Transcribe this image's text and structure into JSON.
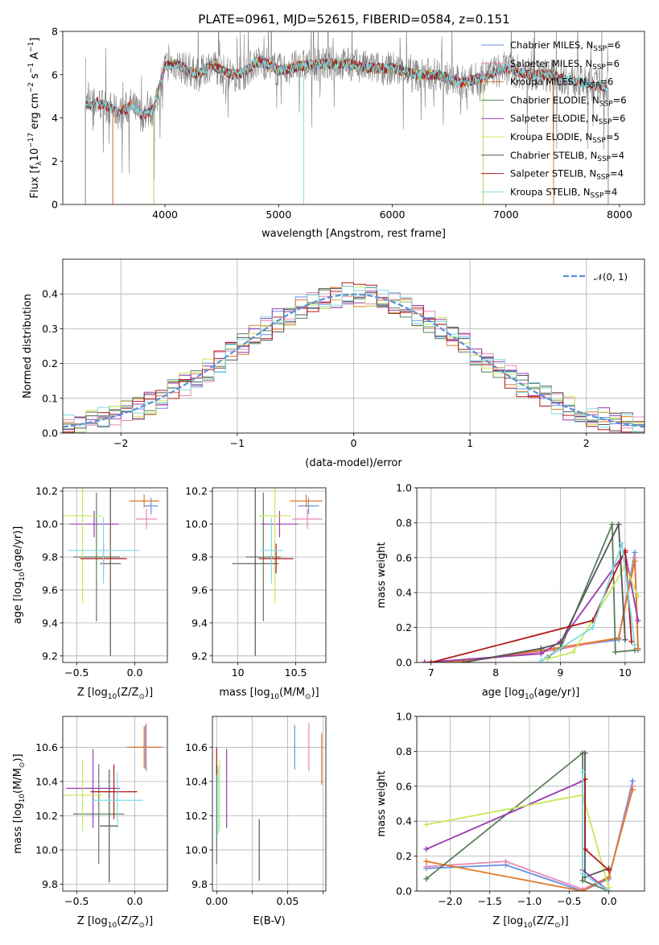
{
  "header": {
    "title": "PLATE=0961, MJD=52615, FIBERID=0584, z=0.151"
  },
  "colors": {
    "c_miles": "#6a8fe0",
    "s_miles": "#e889b3",
    "k_miles": "#e07a28",
    "c_elodie": "#5a7f5a",
    "s_elodie": "#9a3ab0",
    "k_elodie": "#c8e85a",
    "c_stelib": "#555555",
    "s_stelib": "#b01818",
    "k_stelib": "#80dbe0",
    "gauss": "#5b8fd6",
    "data": "#808080"
  },
  "chart_data": [
    {
      "type": "line",
      "id": "spectrum",
      "title": "PLATE=0961, MJD=52615, FIBERID=0584, z=0.151",
      "xlabel": "wavelength [Angstrom, rest frame]",
      "ylabel_parts": [
        "Flux [f",
        "λ",
        "10",
        "−17",
        " erg cm",
        "−2",
        " s",
        "−1",
        " A",
        "−1",
        "]"
      ],
      "xlim": [
        3100,
        8220
      ],
      "ylim": [
        0,
        8
      ],
      "xticks": [
        4000,
        5000,
        6000,
        7000,
        8000
      ],
      "yticks": [
        0,
        2,
        4,
        6,
        8
      ],
      "legend_position": "right",
      "legend": [
        {
          "name": "Chabrier MILES",
          "nssp": "6",
          "color_key": "c_miles"
        },
        {
          "name": "Salpeter MILES",
          "nssp": "6",
          "color_key": "s_miles"
        },
        {
          "name": "Kroupa MILES",
          "nssp": "6",
          "color_key": "k_miles"
        },
        {
          "name": "Chabrier ELODIE",
          "nssp": "6",
          "color_key": "c_elodie"
        },
        {
          "name": "Salpeter ELODIE",
          "nssp": "6",
          "color_key": "s_elodie"
        },
        {
          "name": "Kroupa ELODIE",
          "nssp": "5",
          "color_key": "k_elodie"
        },
        {
          "name": "Chabrier STELIB",
          "nssp": "4",
          "color_key": "c_stelib"
        },
        {
          "name": "Salpeter STELIB",
          "nssp": "4",
          "color_key": "s_stelib"
        },
        {
          "name": "Kroupa STELIB",
          "nssp": "4",
          "color_key": "k_stelib"
        }
      ],
      "legend_sub": "SSP",
      "legend_prefix": "N",
      "continuum": {
        "x": [
          3300,
          3400,
          3500,
          3600,
          3700,
          3800,
          3900,
          4000,
          4100,
          4200,
          4300,
          4400,
          4500,
          4600,
          4700,
          4800,
          4900,
          5000,
          5200,
          5400,
          5600,
          5800,
          6000,
          6200,
          6400,
          6600,
          6800,
          7000,
          7200,
          7400,
          7600,
          7800,
          7900
        ],
        "y": [
          4.6,
          4.7,
          4.5,
          4.2,
          4.6,
          4.1,
          4.4,
          6.4,
          6.5,
          6.2,
          6.0,
          6.5,
          6.2,
          6.0,
          6.1,
          6.6,
          6.5,
          6.2,
          6.4,
          6.5,
          6.5,
          6.3,
          6.3,
          6.0,
          6.0,
          5.6,
          5.9,
          6.3,
          6.0,
          6.0,
          5.7,
          5.5,
          5.4
        ]
      }
    },
    {
      "type": "line",
      "id": "residuals",
      "xlabel": "(data-model)/error",
      "ylabel": "Normed distribution",
      "xlim": [
        -2.5,
        2.5
      ],
      "ylim": [
        0,
        0.5
      ],
      "xticks": [
        -2,
        -1,
        0,
        1,
        2
      ],
      "yticks": [
        0.0,
        0.1,
        0.2,
        0.3,
        0.4
      ],
      "grid": true,
      "legend_position": "top-right",
      "gauss_label": "𝒩(0, 1)",
      "bins": 50
    },
    {
      "type": "scatter",
      "id": "age_vs_Z",
      "xlabel_parts": [
        "Z [log",
        "10",
        "(Z/Z",
        "⊙",
        ")]"
      ],
      "ylabel_parts": [
        "age  [log",
        "10",
        "(age/yr)]"
      ],
      "xlim": [
        -0.62,
        0.28
      ],
      "ylim": [
        9.16,
        10.22
      ],
      "xticks": [
        -0.5,
        0.0
      ],
      "xticklabels": [
        "−0.5",
        "0.0"
      ],
      "yticks": [
        9.2,
        9.4,
        9.6,
        9.8,
        10.0,
        10.2
      ],
      "grid": true,
      "points": [
        {
          "c": "c_miles",
          "x": 0.14,
          "y": 10.11,
          "xe": 0.06,
          "ye": 0.05
        },
        {
          "c": "s_miles",
          "x": 0.1,
          "y": 10.03,
          "xe": 0.09,
          "ye": 0.06
        },
        {
          "c": "k_miles",
          "x": 0.08,
          "y": 10.14,
          "xe": 0.13,
          "ye": 0.04
        },
        {
          "c": "c_elodie",
          "x": -0.33,
          "y": 9.8,
          "xe": 0.2,
          "ye": 0.39
        },
        {
          "c": "s_elodie",
          "x": -0.35,
          "y": 10.0,
          "xe": 0.21,
          "ye": 0.08
        },
        {
          "c": "k_elodie",
          "x": -0.45,
          "y": 10.05,
          "xe": 0.18,
          "ye": 0.53
        },
        {
          "c": "c_stelib",
          "x": -0.21,
          "y": 9.76,
          "xe": 0.09,
          "ye": 0.56
        },
        {
          "c": "s_stelib",
          "x": -0.27,
          "y": 9.79,
          "xe": 0.2,
          "ye": 0.09
        },
        {
          "c": "k_stelib",
          "x": -0.27,
          "y": 9.84,
          "xe": 0.31,
          "ye": 0.2
        }
      ]
    },
    {
      "type": "scatter",
      "id": "age_vs_mass",
      "xlabel_parts": [
        "mass [log",
        "10",
        "(M/M",
        "⊙",
        ")]"
      ],
      "xlim": [
        9.78,
        10.76
      ],
      "ylim": [
        9.16,
        10.22
      ],
      "xticks": [
        10.0,
        10.5
      ],
      "yticks": [
        9.2,
        9.4,
        9.6,
        9.8,
        10.0,
        10.2
      ],
      "grid": true,
      "points": [
        {
          "c": "c_miles",
          "x": 10.61,
          "y": 10.11,
          "xe": 0.09,
          "ye": 0.05
        },
        {
          "c": "s_miles",
          "x": 10.6,
          "y": 10.03,
          "xe": 0.13,
          "ye": 0.06
        },
        {
          "c": "k_miles",
          "x": 10.59,
          "y": 10.14,
          "xe": 0.14,
          "ye": 0.04
        },
        {
          "c": "c_elodie",
          "x": 10.22,
          "y": 9.8,
          "xe": 0.15,
          "ye": 0.39
        },
        {
          "c": "s_elodie",
          "x": 10.36,
          "y": 10.0,
          "xe": 0.16,
          "ye": 0.08
        },
        {
          "c": "k_elodie",
          "x": 10.32,
          "y": 10.05,
          "xe": 0.14,
          "ye": 0.53
        },
        {
          "c": "c_stelib",
          "x": 10.15,
          "y": 9.76,
          "xe": 0.2,
          "ye": 0.56
        },
        {
          "c": "s_stelib",
          "x": 10.33,
          "y": 9.79,
          "xe": 0.15,
          "ye": 0.09
        },
        {
          "c": "k_stelib",
          "x": 10.29,
          "y": 9.84,
          "xe": 0.1,
          "ye": 0.2
        }
      ]
    },
    {
      "type": "line",
      "id": "weight_vs_age",
      "xlabel_parts": [
        "age  [log",
        "10",
        "(age/yr)]"
      ],
      "ylabel": "mass weight",
      "xlim": [
        6.78,
        10.3
      ],
      "ylim": [
        0,
        1
      ],
      "xticks": [
        7,
        8,
        9,
        10
      ],
      "yticks": [
        0.0,
        0.2,
        0.4,
        0.6,
        0.8,
        1.0
      ],
      "grid": true,
      "series": [
        {
          "c": "c_miles",
          "x": [
            6.9,
            7.6,
            8.9,
            9.9,
            10.15,
            10.2
          ],
          "y": [
            0.0,
            0.01,
            0.08,
            0.13,
            0.63,
            0.07
          ]
        },
        {
          "c": "s_miles",
          "x": [
            6.9,
            7.6,
            8.9,
            9.9,
            10.15,
            10.2
          ],
          "y": [
            0.0,
            0.01,
            0.07,
            0.14,
            0.6,
            0.08
          ]
        },
        {
          "c": "k_miles",
          "x": [
            6.9,
            7.6,
            8.9,
            9.9,
            10.15,
            10.2
          ],
          "y": [
            0.0,
            0.01,
            0.08,
            0.14,
            0.58,
            0.08
          ]
        },
        {
          "c": "c_elodie",
          "x": [
            8.8,
            9.0,
            9.8,
            9.85,
            10.15
          ],
          "y": [
            0.03,
            0.08,
            0.79,
            0.06,
            0.07
          ]
        },
        {
          "c": "s_elodie",
          "x": [
            6.9,
            8.7,
            9.0,
            10.0,
            10.2
          ],
          "y": [
            0.0,
            0.05,
            0.12,
            0.63,
            0.24
          ]
        },
        {
          "c": "k_elodie",
          "x": [
            8.8,
            9.2,
            10.0,
            10.2
          ],
          "y": [
            0.02,
            0.06,
            0.55,
            0.38
          ]
        },
        {
          "c": "c_stelib",
          "x": [
            7.5,
            8.7,
            9.0,
            9.9,
            10.0
          ],
          "y": [
            0.0,
            0.08,
            0.11,
            0.79,
            0.13
          ]
        },
        {
          "c": "s_stelib",
          "x": [
            7.0,
            9.5,
            10.0,
            10.1
          ],
          "y": [
            0.0,
            0.24,
            0.64,
            0.12
          ]
        },
        {
          "c": "k_stelib",
          "x": [
            8.7,
            9.5,
            9.95,
            10.15
          ],
          "y": [
            0.01,
            0.2,
            0.68,
            0.1
          ]
        }
      ]
    },
    {
      "type": "scatter",
      "id": "mass_vs_Z",
      "xlabel_parts": [
        "Z [log",
        "10",
        "(Z/Z",
        "⊙",
        ")]"
      ],
      "ylabel_parts": [
        "mass [log",
        "10",
        "(M/M",
        "⊙",
        ")]"
      ],
      "xlim": [
        -0.62,
        0.28
      ],
      "ylim": [
        9.76,
        10.78
      ],
      "xticks": [
        -0.5,
        0.0
      ],
      "xticklabels": [
        "−0.5",
        "0.0"
      ],
      "yticks": [
        9.8,
        10.0,
        10.2,
        10.4,
        10.6
      ],
      "grid": true,
      "points": [
        {
          "c": "c_miles",
          "x": 0.09,
          "y": 10.6,
          "xe": 0.13,
          "ye": 0.13
        },
        {
          "c": "s_miles",
          "x": 0.1,
          "y": 10.6,
          "xe": 0.14,
          "ye": 0.14
        },
        {
          "c": "k_miles",
          "x": 0.08,
          "y": 10.6,
          "xe": 0.15,
          "ye": 0.12
        },
        {
          "c": "c_elodie",
          "x": -0.31,
          "y": 10.21,
          "xe": 0.22,
          "ye": 0.29
        },
        {
          "c": "s_elodie",
          "x": -0.36,
          "y": 10.36,
          "xe": 0.23,
          "ye": 0.23
        },
        {
          "c": "k_elodie",
          "x": -0.45,
          "y": 10.32,
          "xe": 0.17,
          "ye": 0.21
        },
        {
          "c": "c_stelib",
          "x": -0.22,
          "y": 10.14,
          "xe": 0.08,
          "ye": 0.33
        },
        {
          "c": "s_stelib",
          "x": -0.18,
          "y": 10.34,
          "xe": 0.2,
          "ye": 0.16
        },
        {
          "c": "k_stelib",
          "x": -0.15,
          "y": 10.29,
          "xe": 0.22,
          "ye": 0.16
        }
      ]
    },
    {
      "type": "scatter",
      "id": "mass_vs_ebv",
      "xlabel": "E(B-V)",
      "xlim": [
        -0.003,
        0.077
      ],
      "ylim": [
        9.76,
        10.78
      ],
      "xticks": [
        0.0,
        0.025,
        0.05,
        0.075
      ],
      "xticklabels": [
        "0.00",
        "",
        "0.05",
        ""
      ],
      "yticks": [
        9.8,
        10.0,
        10.2,
        10.4,
        10.6
      ],
      "grid": true,
      "points": [
        {
          "c": "c_miles",
          "x": 0.055,
          "y": 10.6,
          "xe": 0,
          "ye": 0.13
        },
        {
          "c": "s_miles",
          "x": 0.065,
          "y": 10.6,
          "xe": 0,
          "ye": 0.14
        },
        {
          "c": "k_miles",
          "x": 0.074,
          "y": 10.53,
          "xe": 0,
          "ye": 0.15
        },
        {
          "c": "c_elodie",
          "x": 0.0,
          "y": 10.21,
          "xe": 0,
          "ye": 0.29
        },
        {
          "c": "s_elodie",
          "x": 0.007,
          "y": 10.36,
          "xe": 0,
          "ye": 0.23
        },
        {
          "c": "k_elodie",
          "x": 0.002,
          "y": 10.32,
          "xe": 0,
          "ye": 0.21
        },
        {
          "c": "c_stelib",
          "x": 0.03,
          "y": 10.0,
          "xe": 0,
          "ye": 0.18
        },
        {
          "c": "s_stelib",
          "x": 0.0,
          "y": 10.52,
          "xe": 0,
          "ye": 0.08
        },
        {
          "c": "k_stelib",
          "x": 0.001,
          "y": 10.29,
          "xe": 0,
          "ye": 0.2
        }
      ]
    },
    {
      "type": "line",
      "id": "weight_vs_Z",
      "xlabel_parts": [
        "Z [log",
        "10",
        "(Z/Z",
        "⊙",
        ")]"
      ],
      "ylabel": "mass weight",
      "xlim": [
        -2.42,
        0.45
      ],
      "ylim": [
        0,
        1
      ],
      "xticks": [
        -2.0,
        -1.5,
        -1.0,
        -0.5,
        0.0
      ],
      "xticklabels": [
        "−2.0",
        "−1.5",
        "−1.0",
        "−0.5",
        "0.0"
      ],
      "yticks": [
        0.0,
        0.2,
        0.4,
        0.6,
        0.8,
        1.0
      ],
      "grid": true,
      "series": [
        {
          "c": "c_miles",
          "x": [
            -2.3,
            -1.3,
            -0.33,
            0.0,
            0.3
          ],
          "y": [
            0.13,
            0.15,
            0.0,
            0.07,
            0.63
          ]
        },
        {
          "c": "s_miles",
          "x": [
            -2.3,
            -1.3,
            -0.33,
            0.0,
            0.3
          ],
          "y": [
            0.14,
            0.17,
            0.01,
            0.08,
            0.6
          ]
        },
        {
          "c": "k_miles",
          "x": [
            -2.3,
            -0.33,
            0.0,
            0.3
          ],
          "y": [
            0.17,
            0.0,
            0.08,
            0.58
          ]
        },
        {
          "c": "c_elodie",
          "x": [
            -2.3,
            -0.33,
            -0.33,
            0.0
          ],
          "y": [
            0.07,
            0.79,
            0.06,
            0.0
          ]
        },
        {
          "c": "s_elodie",
          "x": [
            -2.3,
            -0.33,
            -0.33,
            0.0
          ],
          "y": [
            0.24,
            0.63,
            0.12,
            0.0
          ]
        },
        {
          "c": "k_elodie",
          "x": [
            -2.3,
            -0.33,
            0.0
          ],
          "y": [
            0.38,
            0.55,
            0.02
          ]
        },
        {
          "c": "c_stelib",
          "x": [
            -0.3,
            -0.3,
            0.0
          ],
          "y": [
            0.79,
            0.08,
            0.13
          ]
        },
        {
          "c": "s_stelib",
          "x": [
            -0.3,
            -0.3,
            0.0
          ],
          "y": [
            0.64,
            0.24,
            0.12
          ]
        },
        {
          "c": "k_stelib",
          "x": [
            -0.33,
            -0.33,
            0.0
          ],
          "y": [
            0.68,
            0.1,
            0.0
          ]
        }
      ]
    }
  ]
}
